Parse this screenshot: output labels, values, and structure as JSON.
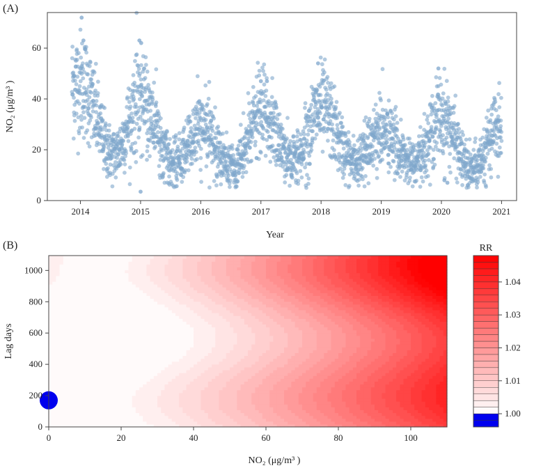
{
  "chart_data": [
    {
      "type": "scatter",
      "panel_label": "(A)",
      "xlabel": "Year",
      "ylabel": "NO₂ (μg/m³ )",
      "xlim": [
        2013.45,
        2021.25
      ],
      "ylim": [
        0,
        74
      ],
      "xticks": [
        2014,
        2015,
        2016,
        2017,
        2018,
        2019,
        2020,
        2021
      ],
      "xtick_labels": [
        "2014",
        "2015",
        "2016",
        "2017",
        "2018",
        "2019",
        "2020",
        "2021"
      ],
      "yticks": [
        0,
        20,
        40,
        60
      ],
      "ytick_labels": [
        "0",
        "20",
        "40",
        "60"
      ],
      "grid": false,
      "point_color": "#7ea6cc",
      "start": 2013.86,
      "end": 2021.0,
      "season_peaks": [
        {
          "x": 2014.0,
          "y": 46
        },
        {
          "x": 2015.0,
          "y": 40
        },
        {
          "x": 2016.0,
          "y": 28
        },
        {
          "x": 2017.0,
          "y": 34
        },
        {
          "x": 2018.0,
          "y": 36
        },
        {
          "x": 2019.0,
          "y": 27
        },
        {
          "x": 2020.0,
          "y": 33
        },
        {
          "x": 2021.0,
          "y": 30
        }
      ],
      "season_troughs": [
        {
          "x": 2014.55,
          "y": 18
        },
        {
          "x": 2015.55,
          "y": 14
        },
        {
          "x": 2016.55,
          "y": 13
        },
        {
          "x": 2017.55,
          "y": 16
        },
        {
          "x": 2018.55,
          "y": 15
        },
        {
          "x": 2019.55,
          "y": 14
        },
        {
          "x": 2020.5,
          "y": 12
        }
      ],
      "highlights": [
        {
          "x": 2014.02,
          "y": 72
        },
        {
          "x": 2014.05,
          "y": 63
        },
        {
          "x": 2014.98,
          "y": 63
        },
        {
          "x": 2015.01,
          "y": 62
        },
        {
          "x": 2015.0,
          "y": 3.5
        },
        {
          "x": 2017.0,
          "y": 47
        },
        {
          "x": 2017.1,
          "y": 47
        },
        {
          "x": 2017.95,
          "y": 54
        },
        {
          "x": 2019.95,
          "y": 52
        },
        {
          "x": 2020.1,
          "y": 7
        },
        {
          "x": 2020.05,
          "y": 8
        }
      ]
    },
    {
      "type": "heatmap",
      "panel_label": "(B)",
      "xlabel": "NO₂ (μg/m³ )",
      "ylabel": "Lag days",
      "xlim": [
        0,
        110
      ],
      "ylim": [
        0,
        1095
      ],
      "xticks": [
        0,
        20,
        40,
        60,
        80,
        100
      ],
      "xtick_labels": [
        "0",
        "20",
        "40",
        "60",
        "80",
        "100"
      ],
      "yticks": [
        0,
        200,
        400,
        600,
        800,
        1000
      ],
      "ytick_labels": [
        "0",
        "200",
        "400",
        "600",
        "800",
        "1000"
      ],
      "colorbar": {
        "title": "RR",
        "min": 0.996,
        "max": 1.048,
        "ticks": [
          1.0,
          1.01,
          1.02,
          1.03,
          1.04
        ],
        "tick_labels": [
          "1.00",
          "1.01",
          "1.02",
          "1.03",
          "1.04"
        ],
        "low_color": "#0000ee",
        "high_color": "#ff0000"
      },
      "reference_point": {
        "x": 0,
        "y": 170,
        "color": "#0000ee"
      }
    }
  ]
}
